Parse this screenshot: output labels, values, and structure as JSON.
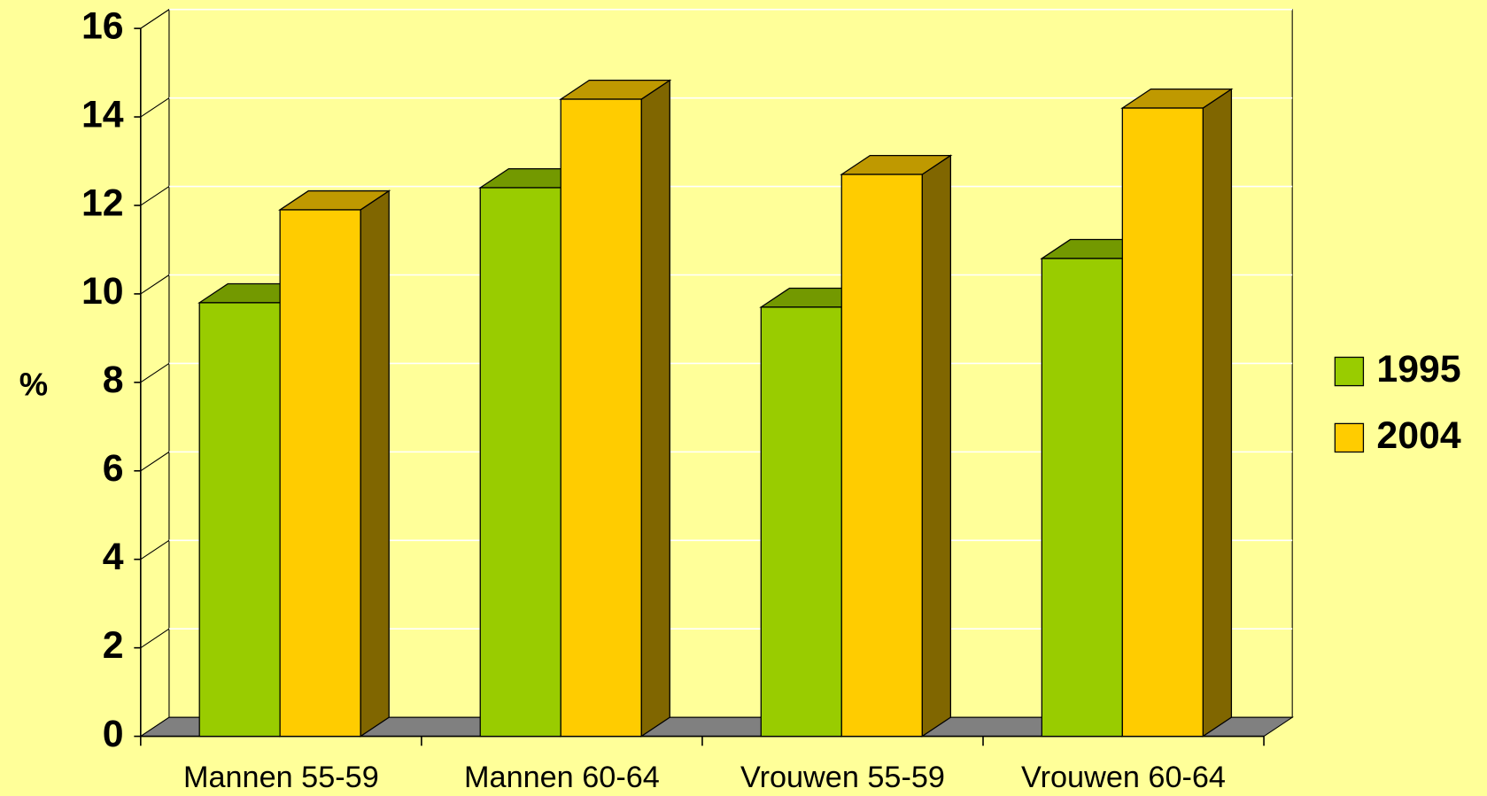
{
  "chart_data": {
    "type": "bar3d",
    "y_label": "%",
    "categories": [
      "Mannen 55-59",
      "Mannen 60-64",
      "Vrouwen 55-59",
      "Vrouwen 60-64"
    ],
    "series": [
      {
        "name": "1995",
        "color": "#99cc00",
        "values": [
          9.8,
          12.4,
          9.7,
          10.8
        ]
      },
      {
        "name": "2004",
        "color": "#ffcc00",
        "values": [
          11.9,
          14.4,
          12.7,
          14.2
        ]
      }
    ],
    "ylim": [
      0,
      16
    ],
    "yticks": [
      0,
      2,
      4,
      6,
      8,
      10,
      12,
      14,
      16
    ],
    "grid": true,
    "legend": "right"
  }
}
